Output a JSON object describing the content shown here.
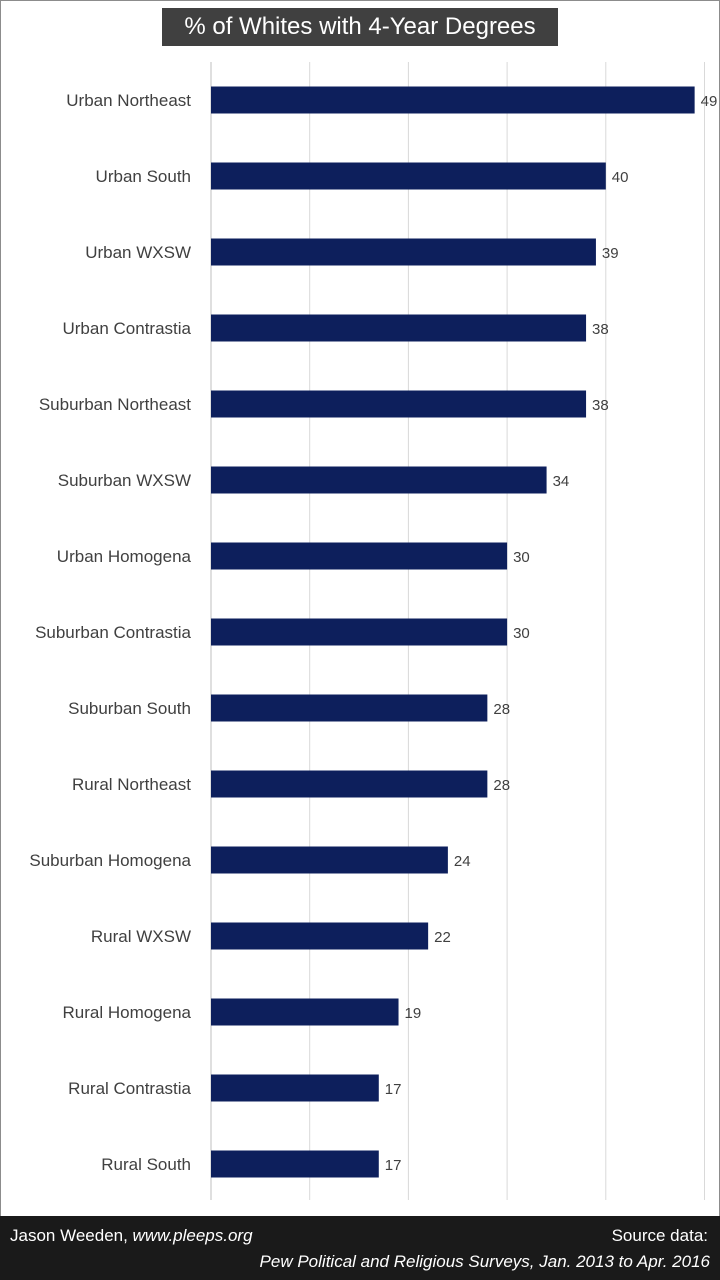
{
  "header": {
    "title": "% of Whites with 4-Year Degrees"
  },
  "footer": {
    "author_name": "Jason Weeden, ",
    "author_site": "www.pleeps.org",
    "source_label": "Source data:",
    "source_detail": "Pew Political and Religious Surveys, Jan. 2013 to Apr. 2016"
  },
  "colors": {
    "bar": "#0d1f5c",
    "grid": "#d9d9d9",
    "label": "#404040"
  },
  "chart_data": {
    "type": "bar",
    "orientation": "horizontal",
    "title": "% of Whites with 4-Year Degrees",
    "xlabel": "",
    "ylabel": "",
    "xlim": [
      0,
      50
    ],
    "grid": true,
    "categories": [
      "Urban Northeast",
      "Urban South",
      "Urban WXSW",
      "Urban Contrastia",
      "Suburban Northeast",
      "Suburban WXSW",
      "Urban Homogena",
      "Suburban Contrastia",
      "Suburban South",
      "Rural Northeast",
      "Suburban Homogena",
      "Rural WXSW",
      "Rural Homogena",
      "Rural Contrastia",
      "Rural South"
    ],
    "values": [
      49,
      40,
      39,
      38,
      38,
      34,
      30,
      30,
      28,
      28,
      24,
      22,
      19,
      17,
      17
    ],
    "data_labels": [
      "49",
      "40",
      "39",
      "38",
      "38",
      "34",
      "30",
      "30",
      "28",
      "28",
      "24",
      "22",
      "19",
      "17",
      "17"
    ]
  }
}
